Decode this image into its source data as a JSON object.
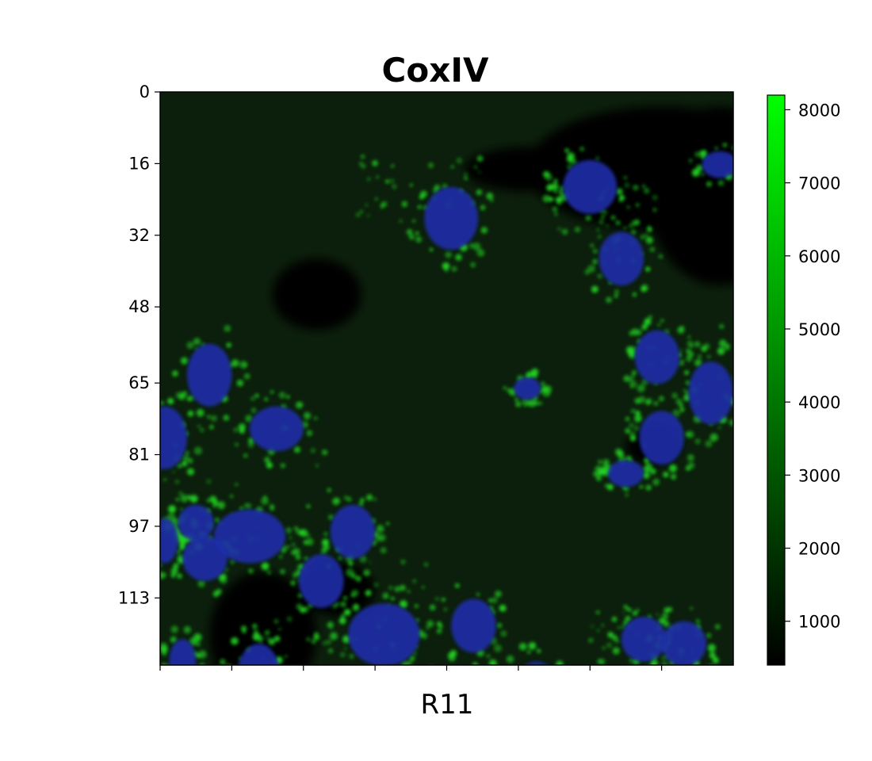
{
  "chart_data": {
    "type": "heatmap",
    "title": "CoxIV",
    "xlabel": "R11",
    "ylabel": "",
    "y_ticks": [
      "0",
      "16",
      "32",
      "48",
      "65",
      "81",
      "97",
      "113"
    ],
    "x_tick_count": 8,
    "x_tick_labels_visible": false,
    "colorbar": {
      "ticks": [
        "1000",
        "2000",
        "3000",
        "4000",
        "5000",
        "6000",
        "7000",
        "8000"
      ],
      "min": 400,
      "max": 8200,
      "colors": [
        "#000000",
        "#00ff00"
      ]
    },
    "image_description_colors": {
      "background": "#0c1f0c",
      "nucleus": "#1f2fa8",
      "mito": "#22d622",
      "void": "#020602"
    }
  }
}
